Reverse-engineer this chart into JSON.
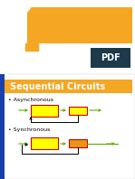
{
  "bg_color": "#f0f0f0",
  "slide_bg": "#ffffff",
  "orange_color": "#f5a623",
  "orange_dark": "#e8951a",
  "yellow_box": "#ffff00",
  "red_border": "#cc0000",
  "green_arrow": "#66aa00",
  "blue_bar": "#1a3faa",
  "dark_teal": "#1c3a4a",
  "title_text": "Sequential Circuits",
  "label_async": "Asynchronous",
  "label_sync": "Synchronous",
  "title_fontsize": 7,
  "label_fontsize": 4.5,
  "pdf_text": "PDF"
}
